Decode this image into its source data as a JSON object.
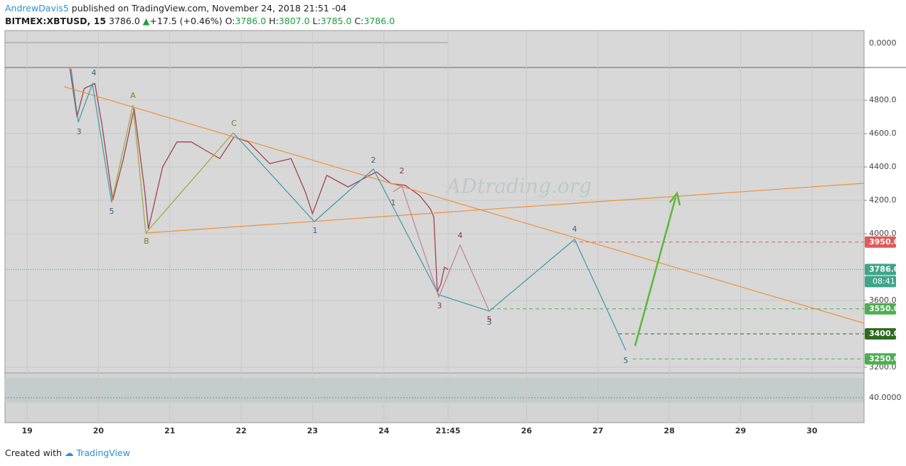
{
  "header": {
    "author": "AndrewDavis5",
    "published": "published on TradingView.com, November 24, 2018 21:51 -04",
    "symbol": "BITMEX:XBTUSD, 15",
    "last": "3786.0",
    "change": "+17.5 (+0.46%)",
    "o_label": "O:",
    "o": "3786.0",
    "h_label": "H:",
    "h": "3807.0",
    "l_label": "L:",
    "l": "3785.0",
    "c_label": "C:",
    "c": "3786.0"
  },
  "footer": {
    "created": "Created with",
    "brand": "TradingView"
  },
  "chart_data": {
    "type": "line",
    "watermark": "ADtrading.org",
    "color": "#a04050",
    "x": [
      19.6,
      19.7,
      19.8,
      19.95,
      20.05,
      20.2,
      20.35,
      20.5,
      20.65,
      20.7,
      20.9,
      21.1,
      21.3,
      21.5,
      21.7,
      21.9,
      22.1,
      22.4,
      22.7,
      22.9,
      23.0,
      23.2,
      23.5,
      23.8,
      23.9,
      24.1,
      24.3,
      24.5,
      24.65,
      24.7,
      24.75,
      24.8,
      24.85,
      24.9
    ],
    "values": [
      4990,
      4700,
      4870,
      4900,
      4650,
      4200,
      4450,
      4750,
      4250,
      4030,
      4400,
      4550,
      4550,
      4500,
      4450,
      4580,
      4550,
      4420,
      4450,
      4250,
      4120,
      4350,
      4280,
      4350,
      4370,
      4300,
      4290,
      4230,
      4150,
      4100,
      3650,
      3700,
      3800,
      3786
    ],
    "xlim": [
      18.69,
      30.73
    ],
    "ylim": [
      3166,
      4996
    ],
    "xticks": [
      19,
      20,
      21,
      22,
      23,
      24,
      {
        "value": 24.9,
        "label": "21:45"
      },
      26,
      27,
      28,
      29,
      30
    ],
    "yticks": [
      {
        "value": 4800,
        "label": "4800.0"
      },
      {
        "value": 4600,
        "label": "4600.0"
      },
      {
        "value": 4400,
        "label": "4400.0"
      },
      {
        "value": 4200,
        "label": "4200.0"
      },
      {
        "value": 4000,
        "label": "4000.0"
      },
      {
        "value": 3600,
        "label": "3600.0"
      },
      {
        "value": 3200,
        "label": "3200.0"
      }
    ],
    "grid": true,
    "levels": [
      {
        "value": 3950,
        "label": "3950.0",
        "color": "#e05a5a"
      },
      {
        "value": 3786,
        "label": "3786.0",
        "color": "#3fa58a"
      },
      {
        "value": 3550,
        "label": "3550.0",
        "color": "#4caf50"
      },
      {
        "value": 3400,
        "label": "3400.0",
        "color": "#2e6b1f"
      },
      {
        "value": 3250,
        "label": "3250.0",
        "color": "#4caf50"
      }
    ],
    "countdown": "08:41",
    "top_indicator_tick": "0.0000",
    "bottom_indicator_tick": "40.0000",
    "wave_labels": [
      "4",
      "3",
      "5",
      "A",
      "B",
      "C",
      "1",
      "2",
      "1",
      "2",
      "3",
      "4",
      "5",
      "3",
      "4",
      "5"
    ]
  }
}
